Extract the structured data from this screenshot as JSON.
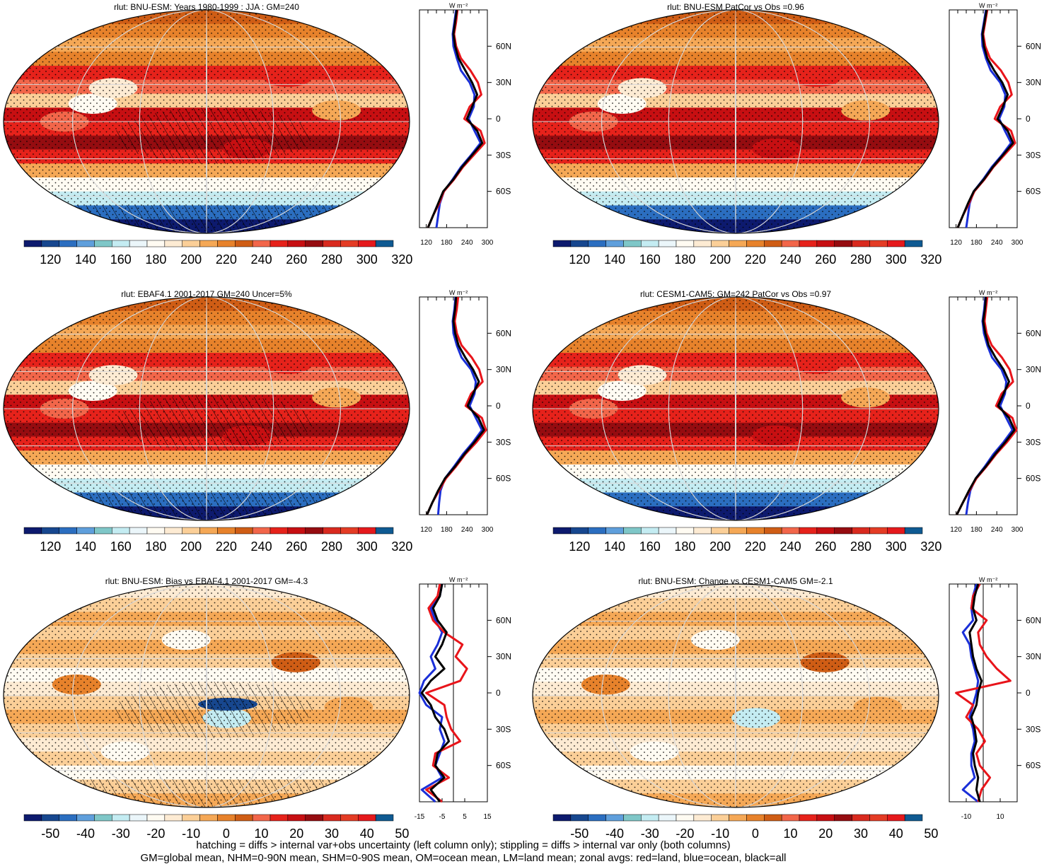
{
  "figure": {
    "footer_line1": "hatching = diffs > internal var+obs uncertainty (left column only); stippling = diffs > internal var only (both columns)",
    "footer_line2": "GM=global mean, NHM=0-90N mean, SHM=0-90S mean, OM=ocean mean, LM=land mean; zonal avgs: red=land, blue=ocean, black=all",
    "zonal_unit": "W m⁻²",
    "colors": {
      "land": "#e8141a",
      "ocean": "#1a2fd8",
      "all": "#000000"
    }
  },
  "chart_data": [
    {
      "type": "heatmap",
      "title": "rlut: BNU-ESM: Years 1980-1999 : JJA : GM=240",
      "colorbar": {
        "kind": "abs",
        "ticks": [
          "120",
          "140",
          "160",
          "180",
          "200",
          "220",
          "240",
          "260",
          "280",
          "300",
          "320"
        ]
      },
      "zonal": {
        "xticks": [
          "120",
          "180",
          "240",
          "300"
        ],
        "xlim": [
          100,
          300
        ],
        "lat_labels": [
          "60N",
          "30N",
          "0",
          "30S",
          "60S"
        ],
        "lat": [
          -90,
          -80,
          -70,
          -60,
          -50,
          -40,
          -30,
          -20,
          -10,
          0,
          10,
          20,
          30,
          40,
          50,
          60,
          70,
          80,
          90
        ],
        "all": [
          125,
          140,
          155,
          170,
          200,
          225,
          255,
          285,
          270,
          240,
          255,
          270,
          255,
          235,
          215,
          205,
          200,
          205,
          210
        ],
        "land": [
          125,
          140,
          158,
          172,
          202,
          228,
          260,
          292,
          280,
          232,
          248,
          282,
          272,
          250,
          222,
          208,
          202,
          208,
          212
        ],
        "ocean": [
          150,
          155,
          160,
          172,
          198,
          222,
          252,
          280,
          262,
          245,
          260,
          262,
          248,
          222,
          210,
          200,
          198,
          203,
          208
        ]
      }
    },
    {
      "type": "heatmap",
      "title": "rlut: BNU-ESM PatCor vs Obs =0.96",
      "colorbar": {
        "kind": "abs",
        "ticks": [
          "120",
          "140",
          "160",
          "180",
          "200",
          "220",
          "240",
          "260",
          "280",
          "300",
          "320"
        ]
      },
      "zonal": {
        "xticks": [
          "120",
          "180",
          "240",
          "300"
        ],
        "xlim": [
          100,
          300
        ],
        "lat_labels": [
          "60N",
          "30N",
          "0",
          "30S",
          "60S"
        ],
        "lat": [
          -90,
          -80,
          -70,
          -60,
          -50,
          -40,
          -30,
          -20,
          -10,
          0,
          10,
          20,
          30,
          40,
          50,
          60,
          70,
          80,
          90
        ],
        "all": [
          125,
          140,
          155,
          172,
          202,
          228,
          258,
          288,
          272,
          242,
          258,
          272,
          256,
          232,
          212,
          202,
          198,
          204,
          210
        ],
        "land": [
          125,
          140,
          158,
          174,
          204,
          230,
          262,
          294,
          282,
          234,
          250,
          284,
          274,
          252,
          220,
          206,
          200,
          206,
          212
        ],
        "ocean": [
          150,
          155,
          160,
          172,
          200,
          225,
          255,
          282,
          264,
          247,
          262,
          265,
          250,
          222,
          208,
          198,
          196,
          202,
          208
        ]
      }
    },
    {
      "type": "heatmap",
      "title": "rlut: EBAF4.1 2001-2017 GM=240 Uncer=5%",
      "colorbar": {
        "kind": "abs",
        "ticks": [
          "120",
          "140",
          "160",
          "180",
          "200",
          "220",
          "240",
          "260",
          "280",
          "300",
          "320"
        ]
      },
      "zonal": {
        "xticks": [
          "120",
          "180",
          "240",
          "300"
        ],
        "xlim": [
          100,
          300
        ],
        "lat_labels": [
          "60N",
          "30N",
          "0",
          "30S",
          "60S"
        ],
        "lat": [
          -90,
          -80,
          -70,
          -60,
          -50,
          -40,
          -30,
          -20,
          -10,
          0,
          10,
          20,
          30,
          40,
          50,
          60,
          70,
          80,
          90
        ],
        "all": [
          122,
          138,
          155,
          175,
          205,
          232,
          262,
          290,
          274,
          242,
          258,
          275,
          258,
          235,
          215,
          205,
          200,
          205,
          208
        ],
        "land": [
          122,
          138,
          158,
          178,
          208,
          235,
          268,
          296,
          284,
          236,
          252,
          286,
          276,
          254,
          224,
          210,
          204,
          210,
          214
        ],
        "ocean": [
          155,
          158,
          162,
          175,
          202,
          228,
          258,
          284,
          266,
          248,
          262,
          266,
          252,
          224,
          210,
          200,
          198,
          203,
          206
        ]
      }
    },
    {
      "type": "heatmap",
      "title": "rlut: CESM1-CAM5: GM=242 PatCor vs Obs =0.97",
      "colorbar": {
        "kind": "abs",
        "ticks": [
          "120",
          "140",
          "160",
          "180",
          "200",
          "220",
          "240",
          "260",
          "280",
          "300",
          "320"
        ]
      },
      "zonal": {
        "xticks": [
          "120",
          "180",
          "240",
          "300"
        ],
        "xlim": [
          100,
          300
        ],
        "lat_labels": [
          "60N",
          "30N",
          "0",
          "30S",
          "60S"
        ],
        "lat": [
          -90,
          -80,
          -70,
          -60,
          -50,
          -40,
          -30,
          -20,
          -10,
          0,
          10,
          20,
          30,
          40,
          50,
          60,
          70,
          80,
          90
        ],
        "all": [
          122,
          140,
          158,
          178,
          208,
          235,
          265,
          292,
          276,
          244,
          260,
          276,
          260,
          236,
          216,
          206,
          200,
          205,
          208
        ],
        "land": [
          122,
          140,
          160,
          180,
          210,
          238,
          270,
          298,
          286,
          238,
          254,
          288,
          278,
          255,
          225,
          210,
          204,
          208,
          212
        ],
        "ocean": [
          150,
          155,
          162,
          178,
          205,
          230,
          260,
          286,
          268,
          250,
          264,
          268,
          254,
          226,
          212,
          202,
          198,
          203,
          206
        ]
      }
    },
    {
      "type": "heatmap",
      "title": "rlut: BNU-ESM: Bias vs EBAF4.1 2001-2017 GM=-4.3",
      "colorbar": {
        "kind": "diff",
        "ticks": [
          "-50",
          "-40",
          "-30",
          "-20",
          "-10",
          "0",
          "10",
          "20",
          "30",
          "40",
          "50"
        ]
      },
      "zonal": {
        "xticks": [
          "-15",
          "-5",
          "5",
          "15"
        ],
        "xlim": [
          -15,
          15
        ],
        "lat_labels": [
          "60N",
          "30N",
          "0",
          "30S",
          "60S"
        ],
        "lat": [
          -90,
          -80,
          -70,
          -60,
          -50,
          -40,
          -30,
          -20,
          -10,
          0,
          10,
          20,
          30,
          40,
          50,
          60,
          70,
          80,
          90
        ],
        "all": [
          -6,
          -10,
          -4,
          -8,
          -7,
          -2,
          -4,
          -8,
          -10,
          -14,
          -10,
          -4,
          -8,
          -5,
          -3,
          -7,
          -9,
          -6,
          -5
        ],
        "land": [
          -5,
          -12,
          -2,
          -9,
          -8,
          3,
          -1,
          -3,
          -4,
          -12,
          3,
          6,
          1,
          4,
          -4,
          -9,
          -11,
          -7,
          -6
        ],
        "ocean": [
          -8,
          -14,
          -5,
          -8,
          -6,
          -4,
          -6,
          -5,
          -12,
          -15,
          -13,
          -8,
          -10,
          -7,
          -5,
          -8,
          -10,
          -6,
          -5
        ]
      }
    },
    {
      "type": "heatmap",
      "title": "rlut: BNU-ESM: Change vs CESM1-CAM5 GM=-2.1",
      "colorbar": {
        "kind": "diff",
        "ticks": [
          "-50",
          "-40",
          "-30",
          "-20",
          "-10",
          "0",
          "10",
          "20",
          "30",
          "40",
          "50"
        ]
      },
      "zonal": {
        "xticks": [
          "-10",
          "10"
        ],
        "xlim": [
          -20,
          20
        ],
        "lat_labels": [
          "60N",
          "30N",
          "0",
          "30S",
          "60S"
        ],
        "lat": [
          -90,
          -80,
          -70,
          -60,
          -50,
          -40,
          -30,
          -20,
          -10,
          0,
          10,
          20,
          30,
          40,
          50,
          60,
          70,
          80,
          90
        ],
        "all": [
          -2,
          -4,
          -3,
          -5,
          -6,
          -4,
          -5,
          -7,
          -4,
          -3,
          -1,
          -4,
          -6,
          -7,
          -8,
          -4,
          -6,
          -5,
          -3
        ],
        "land": [
          -3,
          -1,
          4,
          -2,
          -4,
          1,
          -3,
          -10,
          -6,
          -16,
          16,
          8,
          2,
          -2,
          -3,
          2,
          -7,
          -6,
          -2
        ],
        "ocean": [
          -3,
          -12,
          -5,
          -7,
          -7,
          -5,
          -6,
          -8,
          -6,
          -4,
          -3,
          -5,
          -7,
          -8,
          -12,
          -6,
          -7,
          -6,
          -4
        ]
      }
    }
  ]
}
